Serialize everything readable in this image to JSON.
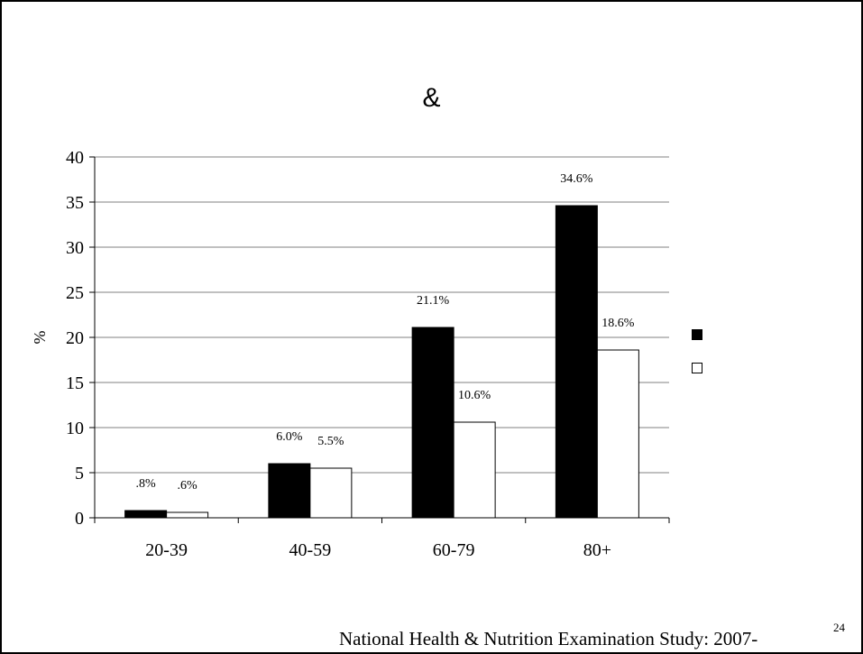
{
  "slide": {
    "footer": "National Health & Nutrition Examination Study: 2007-",
    "page_number": "24"
  },
  "chart_data": {
    "type": "bar",
    "title": "&",
    "xlabel": "",
    "ylabel": "%",
    "ylim": [
      0,
      40
    ],
    "yticks": [
      "0",
      "5",
      "10",
      "15",
      "20",
      "25",
      "30",
      "35",
      "40"
    ],
    "grid": true,
    "legend_position": "right",
    "categories": [
      "20-39",
      "40-59",
      "60-79",
      "80+"
    ],
    "series": [
      {
        "name": "",
        "color": "#000000",
        "values": [
          0.8,
          6.0,
          21.1,
          34.6
        ],
        "labels": [
          ".8%",
          "6.0%",
          "21.1%",
          "34.6%"
        ]
      },
      {
        "name": "",
        "color": "#ffffff",
        "values": [
          0.6,
          5.5,
          10.6,
          18.6
        ],
        "labels": [
          ".6%",
          "5.5%",
          "10.6%",
          "18.6%"
        ]
      }
    ]
  }
}
